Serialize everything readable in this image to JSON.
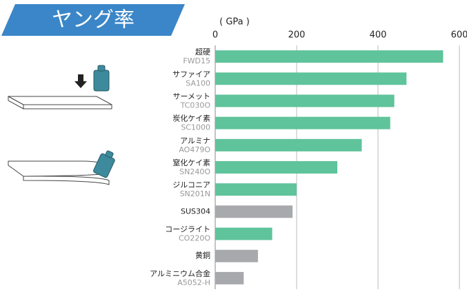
{
  "chart_data": {
    "type": "bar",
    "orientation": "horizontal",
    "title": "ヤング率",
    "x_label": "( GPa )",
    "categories": [
      "超硬",
      "サファイア",
      "サーメット",
      "炭化ケイ素",
      "アルミナ",
      "窒化ケイ素",
      "ジルコニア",
      "SUS304",
      "コージライト",
      "黄銅",
      "アルミニウム合金"
    ],
    "codes": [
      "FWD15",
      "SA100",
      "TC030O",
      "SC1000",
      "AO479O",
      "SN240O",
      "SN201N",
      null,
      "CO220O",
      null,
      "A5052-H"
    ],
    "values": [
      560,
      470,
      440,
      430,
      360,
      300,
      200,
      190,
      140,
      105,
      70
    ],
    "colors": [
      "#5fc39b",
      "#5fc39b",
      "#5fc39b",
      "#5fc39b",
      "#5fc39b",
      "#5fc39b",
      "#5fc39b",
      "#a8a9ad",
      "#5fc39b",
      "#a8a9ad",
      "#a8a9ad"
    ],
    "xlim": [
      0,
      600
    ],
    "xticks": [
      0,
      200,
      400,
      600
    ],
    "grid": true
  }
}
